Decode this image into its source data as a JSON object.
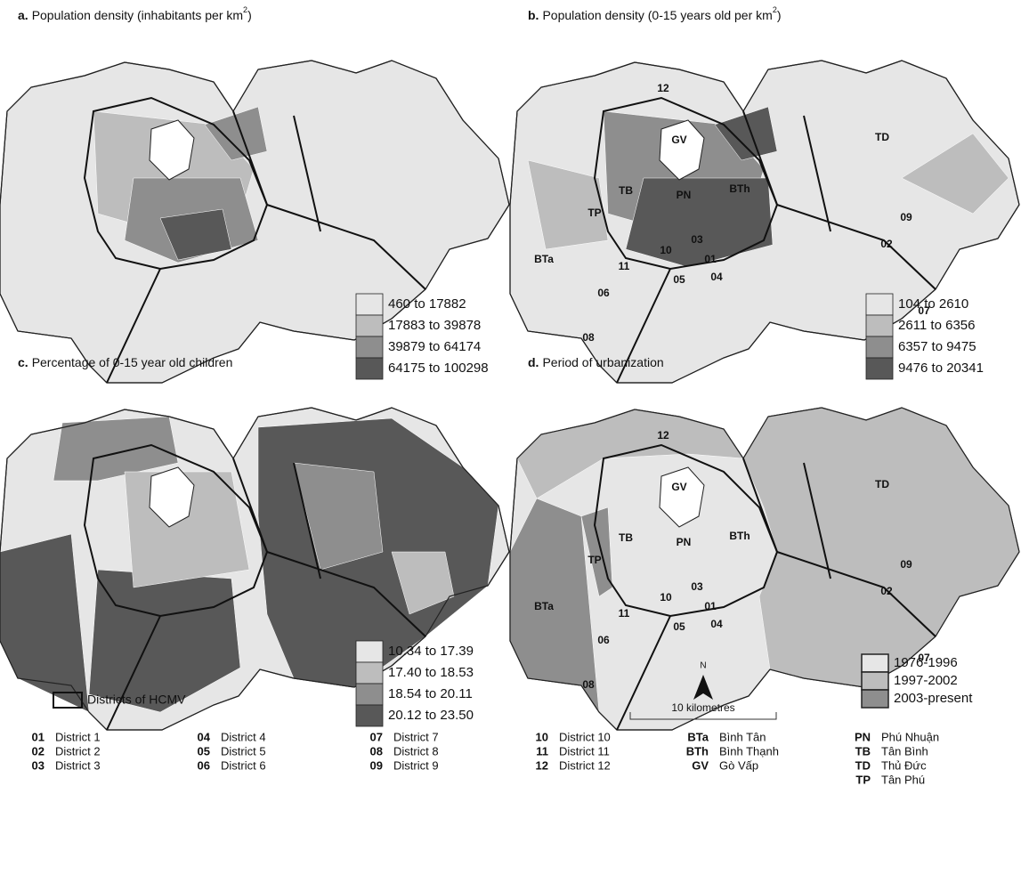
{
  "panels": [
    {
      "letter": "a.",
      "title": "Population density (inhabitants per km",
      "sup": "2",
      "title_end": ")",
      "legend": [
        {
          "label": "460 to 17882",
          "color": "#e6e6e6"
        },
        {
          "label": "17883 to 39878",
          "color": "#bdbdbd"
        },
        {
          "label": "39879 to 64174",
          "color": "#8e8e8e"
        },
        {
          "label": "64175 to 100298",
          "color": "#585858"
        }
      ],
      "labels": []
    },
    {
      "letter": "b.",
      "title": "Population density (0-15 years old per km",
      "sup": "2",
      "title_end": ")",
      "legend": [
        {
          "label": "104 to 2610",
          "color": "#e6e6e6"
        },
        {
          "label": "2611 to 6356",
          "color": "#bdbdbd"
        },
        {
          "label": "6357 to 9475",
          "color": "#8e8e8e"
        },
        {
          "label": "9476 to 20341",
          "color": "#585858"
        }
      ],
      "labels": [
        "12",
        "TD",
        "GV",
        "09",
        "BTh",
        "TB",
        "PN",
        "TP",
        "02",
        "03",
        "10",
        "01",
        "BTa",
        "11",
        "05",
        "04",
        "06",
        "07",
        "08"
      ]
    },
    {
      "letter": "c.",
      "title": "Percentage of 0-15 year old children",
      "sup": null,
      "title_end": null,
      "legend": [
        {
          "label": "10.34 to 17.39",
          "color": "#e6e6e6"
        },
        {
          "label": "17.40 to 18.53",
          "color": "#bdbdbd"
        },
        {
          "label": "18.54 to 20.11",
          "color": "#8e8e8e"
        },
        {
          "label": "20.12 to 23.50",
          "color": "#585858"
        }
      ],
      "labels": []
    },
    {
      "letter": "d.",
      "title": "Period of urbanization",
      "sup": null,
      "title_end": null,
      "legend": [
        {
          "label": "1976-1996",
          "color": "#e6e6e6"
        },
        {
          "label": "1997-2002",
          "color": "#bdbdbd"
        },
        {
          "label": "2003-present",
          "color": "#8e8e8e"
        }
      ],
      "labels": [
        "12",
        "TD",
        "GV",
        "09",
        "BTh",
        "TB",
        "PN",
        "TP",
        "02",
        "03",
        "10",
        "01",
        "BTa",
        "11",
        "05",
        "04",
        "06",
        "07",
        "08"
      ]
    }
  ],
  "north": "N",
  "scale": "10 kilometres",
  "districts_legend": "Districts of HCMV",
  "key": [
    {
      "code": "01",
      "name": "District 1"
    },
    {
      "code": "02",
      "name": "District 2"
    },
    {
      "code": "03",
      "name": "District 3"
    },
    {
      "code": "04",
      "name": "District 4"
    },
    {
      "code": "05",
      "name": "District 5"
    },
    {
      "code": "06",
      "name": "District 6"
    },
    {
      "code": "07",
      "name": "District 7"
    },
    {
      "code": "08",
      "name": "District 8"
    },
    {
      "code": "09",
      "name": "District 9"
    },
    {
      "code": "10",
      "name": "District 10"
    },
    {
      "code": "11",
      "name": "District 11"
    },
    {
      "code": "12",
      "name": "District 12"
    },
    {
      "code": "BTa",
      "name": "Bình Tân"
    },
    {
      "code": "BTh",
      "name": "Bình Thạnh"
    },
    {
      "code": "GV",
      "name": "Gò Vấp"
    },
    {
      "code": "PN",
      "name": "Phú Nhuận"
    },
    {
      "code": "TB",
      "name": "Tân Bình"
    },
    {
      "code": "TD",
      "name": "Thủ Đức"
    },
    {
      "code": "TP",
      "name": "Tân Phú"
    }
  ]
}
